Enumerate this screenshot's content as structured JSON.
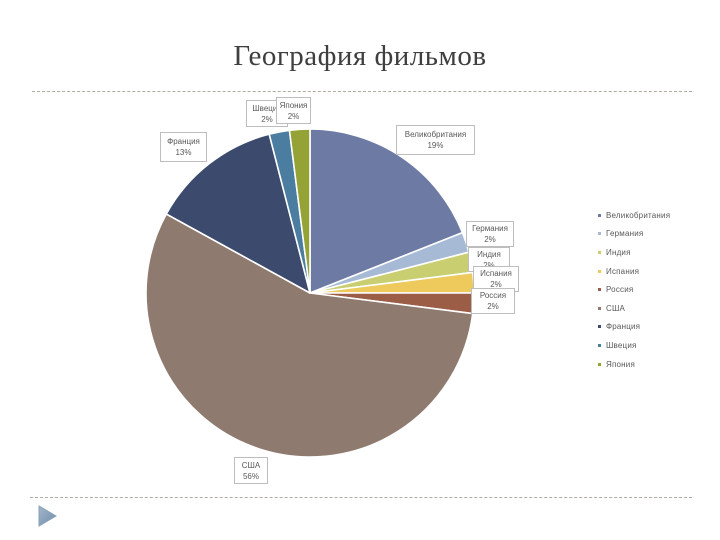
{
  "slide": {
    "title": "География фильмов"
  },
  "chart_data": {
    "type": "pie",
    "title": "География фильмов",
    "start_angle_deg": 0,
    "direction": "clockwise",
    "legend_position": "right",
    "unit": "%",
    "slices": [
      {
        "label": "Великобритания",
        "value": 19,
        "percent_label": "19%",
        "color": "#6d7ba4"
      },
      {
        "label": "Германия",
        "value": 2,
        "percent_label": "2%",
        "color": "#a6bad6"
      },
      {
        "label": "Индия",
        "value": 2,
        "percent_label": "2%",
        "color": "#c9cf70"
      },
      {
        "label": "Испания",
        "value": 2,
        "percent_label": "2%",
        "color": "#eec95c"
      },
      {
        "label": "Россия",
        "value": 2,
        "percent_label": "2%",
        "color": "#9c5d46"
      },
      {
        "label": "США",
        "value": 56,
        "percent_label": "56%",
        "color": "#8f7a6f"
      },
      {
        "label": "Франция",
        "value": 13,
        "percent_label": "13%",
        "color": "#3b4a6d"
      },
      {
        "label": "Швеция",
        "value": 2,
        "percent_label": "2%",
        "color": "#4b7da0"
      },
      {
        "label": "Япония",
        "value": 2,
        "percent_label": "2%",
        "color": "#94a236"
      }
    ],
    "legend_items": [
      "Великобритания",
      "Германия",
      "Индия",
      "Испания",
      "Россия",
      "США",
      "Франция",
      "Швеция",
      "Япония"
    ]
  }
}
